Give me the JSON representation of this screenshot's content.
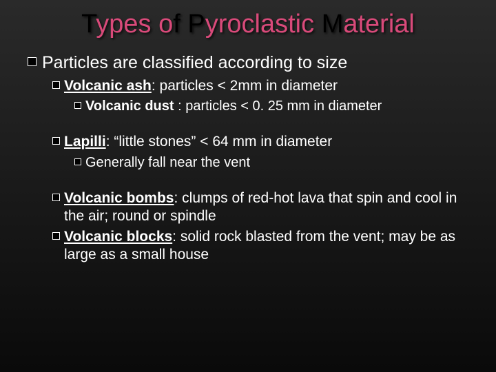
{
  "title": {
    "word1_first": "T",
    "word1_rest": "ypes",
    "word2_first": "o",
    "word2_rest": "f",
    "word3_first": "P",
    "word3_rest": "yroclastic",
    "word4_first": "M",
    "word4_rest": "aterial"
  },
  "lines": {
    "l1": "Particles are classified according to size",
    "l2_term": "Volcanic ash",
    "l2_rest": ": particles < 2mm in diameter",
    "l3_term": "Volcanic dust",
    "l3_rest": " : particles < 0. 25 mm in diameter",
    "l4_term": "Lapilli",
    "l4_rest": ": “little stones” < 64 mm in diameter",
    "l5": "Generally fall near the vent",
    "l6_term": "Volcanic bombs",
    "l6_rest": ": clumps of red-hot lava that spin and cool in the air; round or spindle",
    "l7_term": "Volcanic blocks",
    "l7_rest": ": solid rock blasted from the vent; may be as large as a small house"
  },
  "colors": {
    "title_inner": "#d94a7a",
    "title_outer": "#000000",
    "text": "#ffffff",
    "bg_top": "#2a2a2a",
    "bg_bottom": "#0a0a0a"
  }
}
